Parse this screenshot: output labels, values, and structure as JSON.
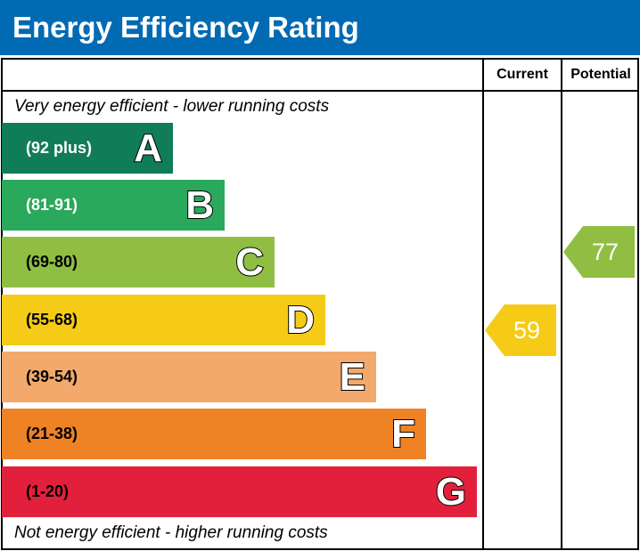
{
  "title": "Energy Efficiency Rating",
  "columns": {
    "current": "Current",
    "potential": "Potential"
  },
  "top_note": "Very energy efficient - lower running costs",
  "bottom_note": "Not energy efficient - higher running costs",
  "chart_data": {
    "type": "bar",
    "bands": [
      {
        "letter": "A",
        "range": "(92 plus)",
        "color": "#117c58",
        "range_color": "#ffffff"
      },
      {
        "letter": "B",
        "range": "(81-91)",
        "color": "#2aa85b",
        "range_color": "#ffffff"
      },
      {
        "letter": "C",
        "range": "(69-80)",
        "color": "#8fbe43",
        "range_color": "#000000"
      },
      {
        "letter": "D",
        "range": "(55-68)",
        "color": "#f5cb17",
        "range_color": "#000000"
      },
      {
        "letter": "E",
        "range": "(39-54)",
        "color": "#f2a96b",
        "range_color": "#000000"
      },
      {
        "letter": "F",
        "range": "(21-38)",
        "color": "#ee8225",
        "range_color": "#000000"
      },
      {
        "letter": "G",
        "range": "(1-20)",
        "color": "#e3203c",
        "range_color": "#000000"
      }
    ],
    "current": {
      "value": "59",
      "band": "D",
      "color": "#f5cb17"
    },
    "potential": {
      "value": "77",
      "band": "C",
      "color": "#8fbe43"
    }
  }
}
